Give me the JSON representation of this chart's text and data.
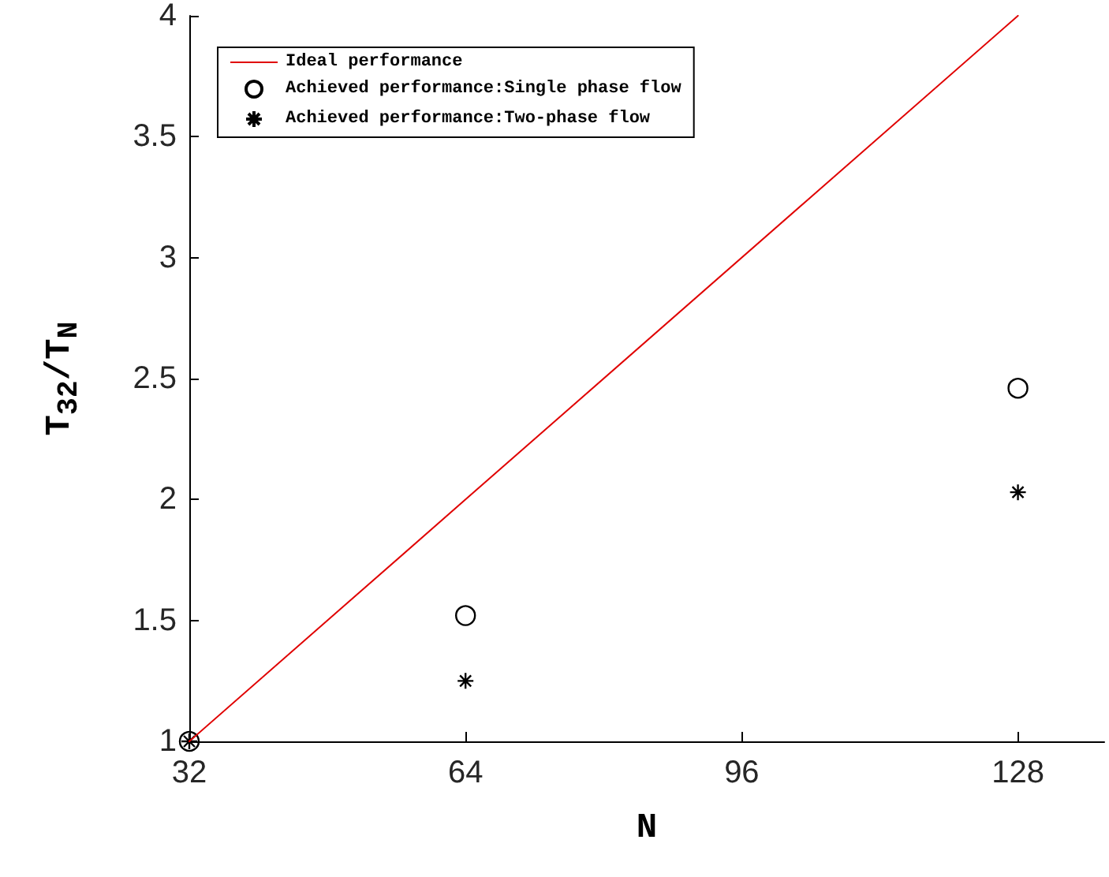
{
  "chart_data": {
    "type": "line",
    "xlabel": "N",
    "ylabel": "T$_{32}$/T$_{N}$",
    "xlim": [
      32,
      138
    ],
    "xticks": [
      32,
      64,
      96,
      128
    ],
    "ylim": [
      1,
      4
    ],
    "yticks": [
      1,
      1.5,
      2,
      2.5,
      3,
      3.5,
      4
    ],
    "grid": false,
    "legend": "top left",
    "series": [
      {
        "name": "Ideal performance",
        "type": "line",
        "color": "#e00000",
        "marker": "none",
        "line_style": "solid",
        "x": [
          32,
          64,
          128
        ],
        "values": [
          1,
          2,
          4
        ]
      },
      {
        "name": "Achieved performance:Single phase flow",
        "type": "scatter",
        "color": "#000000",
        "marker": "circle",
        "x": [
          32,
          64,
          128
        ],
        "values": [
          1,
          1.52,
          2.46
        ]
      },
      {
        "name": "Achieved performance:Two-phase flow",
        "type": "scatter",
        "color": "#000000",
        "marker": "cross",
        "x": [
          32,
          64,
          128
        ],
        "values": [
          1,
          1.25,
          2.03
        ]
      }
    ]
  }
}
